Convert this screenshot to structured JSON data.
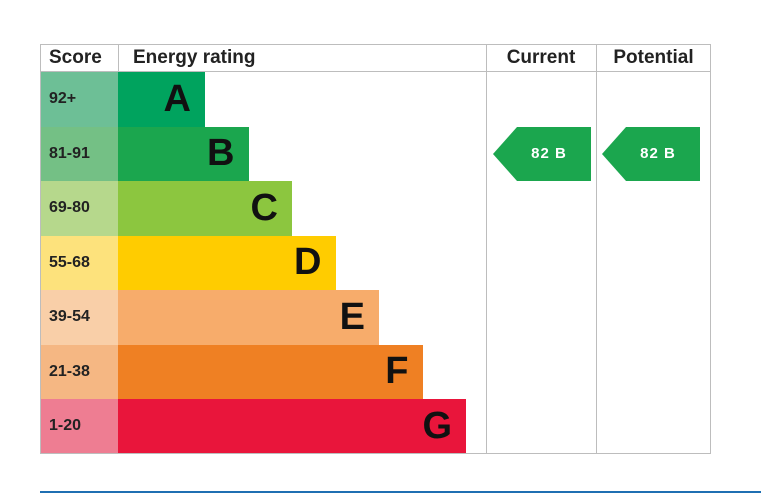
{
  "headers": {
    "score": "Score",
    "rating": "Energy rating",
    "current": "Current",
    "potential": "Potential"
  },
  "chart_data": {
    "type": "bar",
    "categories": [
      "A",
      "B",
      "C",
      "D",
      "E",
      "F",
      "G"
    ],
    "score_ranges": [
      "92+",
      "81-91",
      "69-80",
      "55-68",
      "39-54",
      "21-38",
      "1-20"
    ],
    "bar_colors": [
      "#00a35e",
      "#1ba64e",
      "#8cc63f",
      "#ffcc00",
      "#f7ac6b",
      "#ef8023",
      "#e9153b"
    ],
    "band_tints": [
      "#6dbf96",
      "#74c085",
      "#b6d88c",
      "#fde27c",
      "#f9cfa8",
      "#f5b783",
      "#ee7d92"
    ],
    "current": {
      "score": 82,
      "band": "B",
      "label": "82  B",
      "color": "#1ba64e"
    },
    "potential": {
      "score": 82,
      "band": "B",
      "label": "82  B",
      "color": "#1ba64e"
    }
  }
}
